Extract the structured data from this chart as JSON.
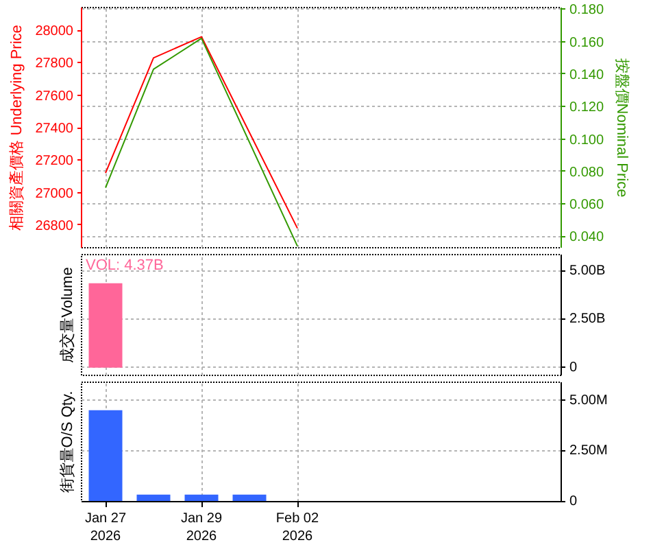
{
  "chart_data": [
    {
      "type": "line",
      "categories": [
        "Jan 27\n2026",
        null,
        "Jan 29\n2026",
        null,
        "Feb 02\n2026",
        null,
        null,
        null,
        null,
        null
      ],
      "series": [
        {
          "color": "#ff0000",
          "values": [
            27120,
            27830,
            27960,
            null,
            26780,
            null,
            null,
            null,
            null,
            null
          ]
        },
        {
          "color": "#339900",
          "axis": "y2",
          "values": [
            0.07,
            0.143,
            0.162,
            null,
            0.034,
            null,
            null,
            null,
            null,
            null
          ]
        }
      ],
      "ylabel": "相關資產價格 Underlying Price",
      "y2label": "按盤價Nominal Price",
      "ylim": [
        26660,
        28140
      ],
      "yticks": [
        26800,
        27000,
        27200,
        27400,
        27600,
        27800,
        28000
      ],
      "y2lim": [
        0.033,
        0.181
      ],
      "y2ticks": [
        {
          "value": 0.04,
          "label": "0.040"
        },
        {
          "value": 0.06,
          "label": "0.060"
        },
        {
          "value": 0.08,
          "label": "0.080"
        },
        {
          "value": 0.1,
          "label": "0.100"
        },
        {
          "value": 0.12,
          "label": "0.120"
        },
        {
          "value": 0.14,
          "label": "0.140"
        },
        {
          "value": 0.16,
          "label": "0.160"
        },
        {
          "value": 0.18,
          "label": "0.180"
        }
      ],
      "grid": true,
      "tick_labels": "y"
    },
    {
      "type": "bar",
      "categories": [
        "Jan 27\n2026",
        null,
        "Jan 29\n2026",
        null,
        "Feb 02\n2026",
        null,
        null,
        null,
        null,
        null
      ],
      "series": [
        {
          "color": "#ff6699",
          "axis": "y2",
          "values": [
            4.37,
            null,
            null,
            null,
            null,
            null,
            null,
            null,
            null,
            null
          ]
        }
      ],
      "ylabel": "成交量Volume",
      "y2lim": [
        -0.4,
        5.85
      ],
      "y2ticks": [
        0,
        {
          "value": 2.5,
          "label": "2.50B"
        },
        {
          "value": 5,
          "label": "5.00B"
        }
      ],
      "annotations": [
        "VOL: 4.37B"
      ],
      "grid": true,
      "tick_labels": "y"
    },
    {
      "type": "bar",
      "categories": [
        "Jan 27\n2026",
        null,
        "Jan 29\n2026",
        null,
        "Feb 02\n2026",
        null,
        null,
        null,
        null,
        null
      ],
      "series": [
        {
          "color": "#3366ff",
          "axis": "y2",
          "values": [
            4.52,
            0.35,
            0.35,
            0.35,
            null,
            null,
            null,
            null,
            null,
            null
          ]
        }
      ],
      "ylabel": "街貨量O/S Qty.",
      "y2lim": [
        0,
        5.9
      ],
      "y2ticks": [
        0,
        {
          "value": 2.5,
          "label": "2.50M"
        },
        {
          "value": 5,
          "label": "5.00M"
        }
      ],
      "grid": true
    }
  ]
}
